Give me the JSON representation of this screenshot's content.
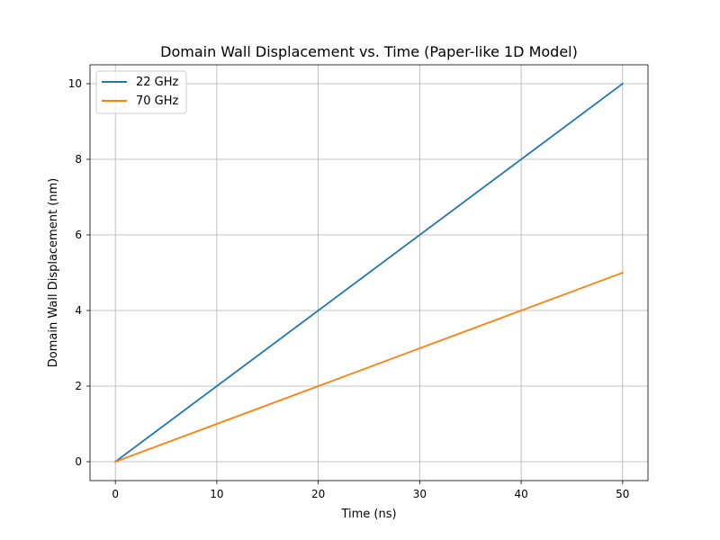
{
  "chart_data": {
    "type": "line",
    "title": "Domain Wall Displacement vs. Time (Paper-like 1D Model)",
    "xlabel": "Time (ns)",
    "ylabel": "Domain Wall Displacement (nm)",
    "xlim": [
      -2.5,
      52.5
    ],
    "ylim": [
      -0.5,
      10.5
    ],
    "xticks": [
      0,
      10,
      20,
      30,
      40,
      50
    ],
    "yticks": [
      0,
      2,
      4,
      6,
      8,
      10
    ],
    "grid": true,
    "legend_position": "upper-left",
    "series": [
      {
        "name": "22 GHz",
        "color": "#1f77b4",
        "x": [
          0,
          50
        ],
        "y": [
          0,
          10
        ]
      },
      {
        "name": "70 GHz",
        "color": "#ff7f0e",
        "x": [
          0,
          50
        ],
        "y": [
          0,
          5
        ]
      }
    ]
  }
}
